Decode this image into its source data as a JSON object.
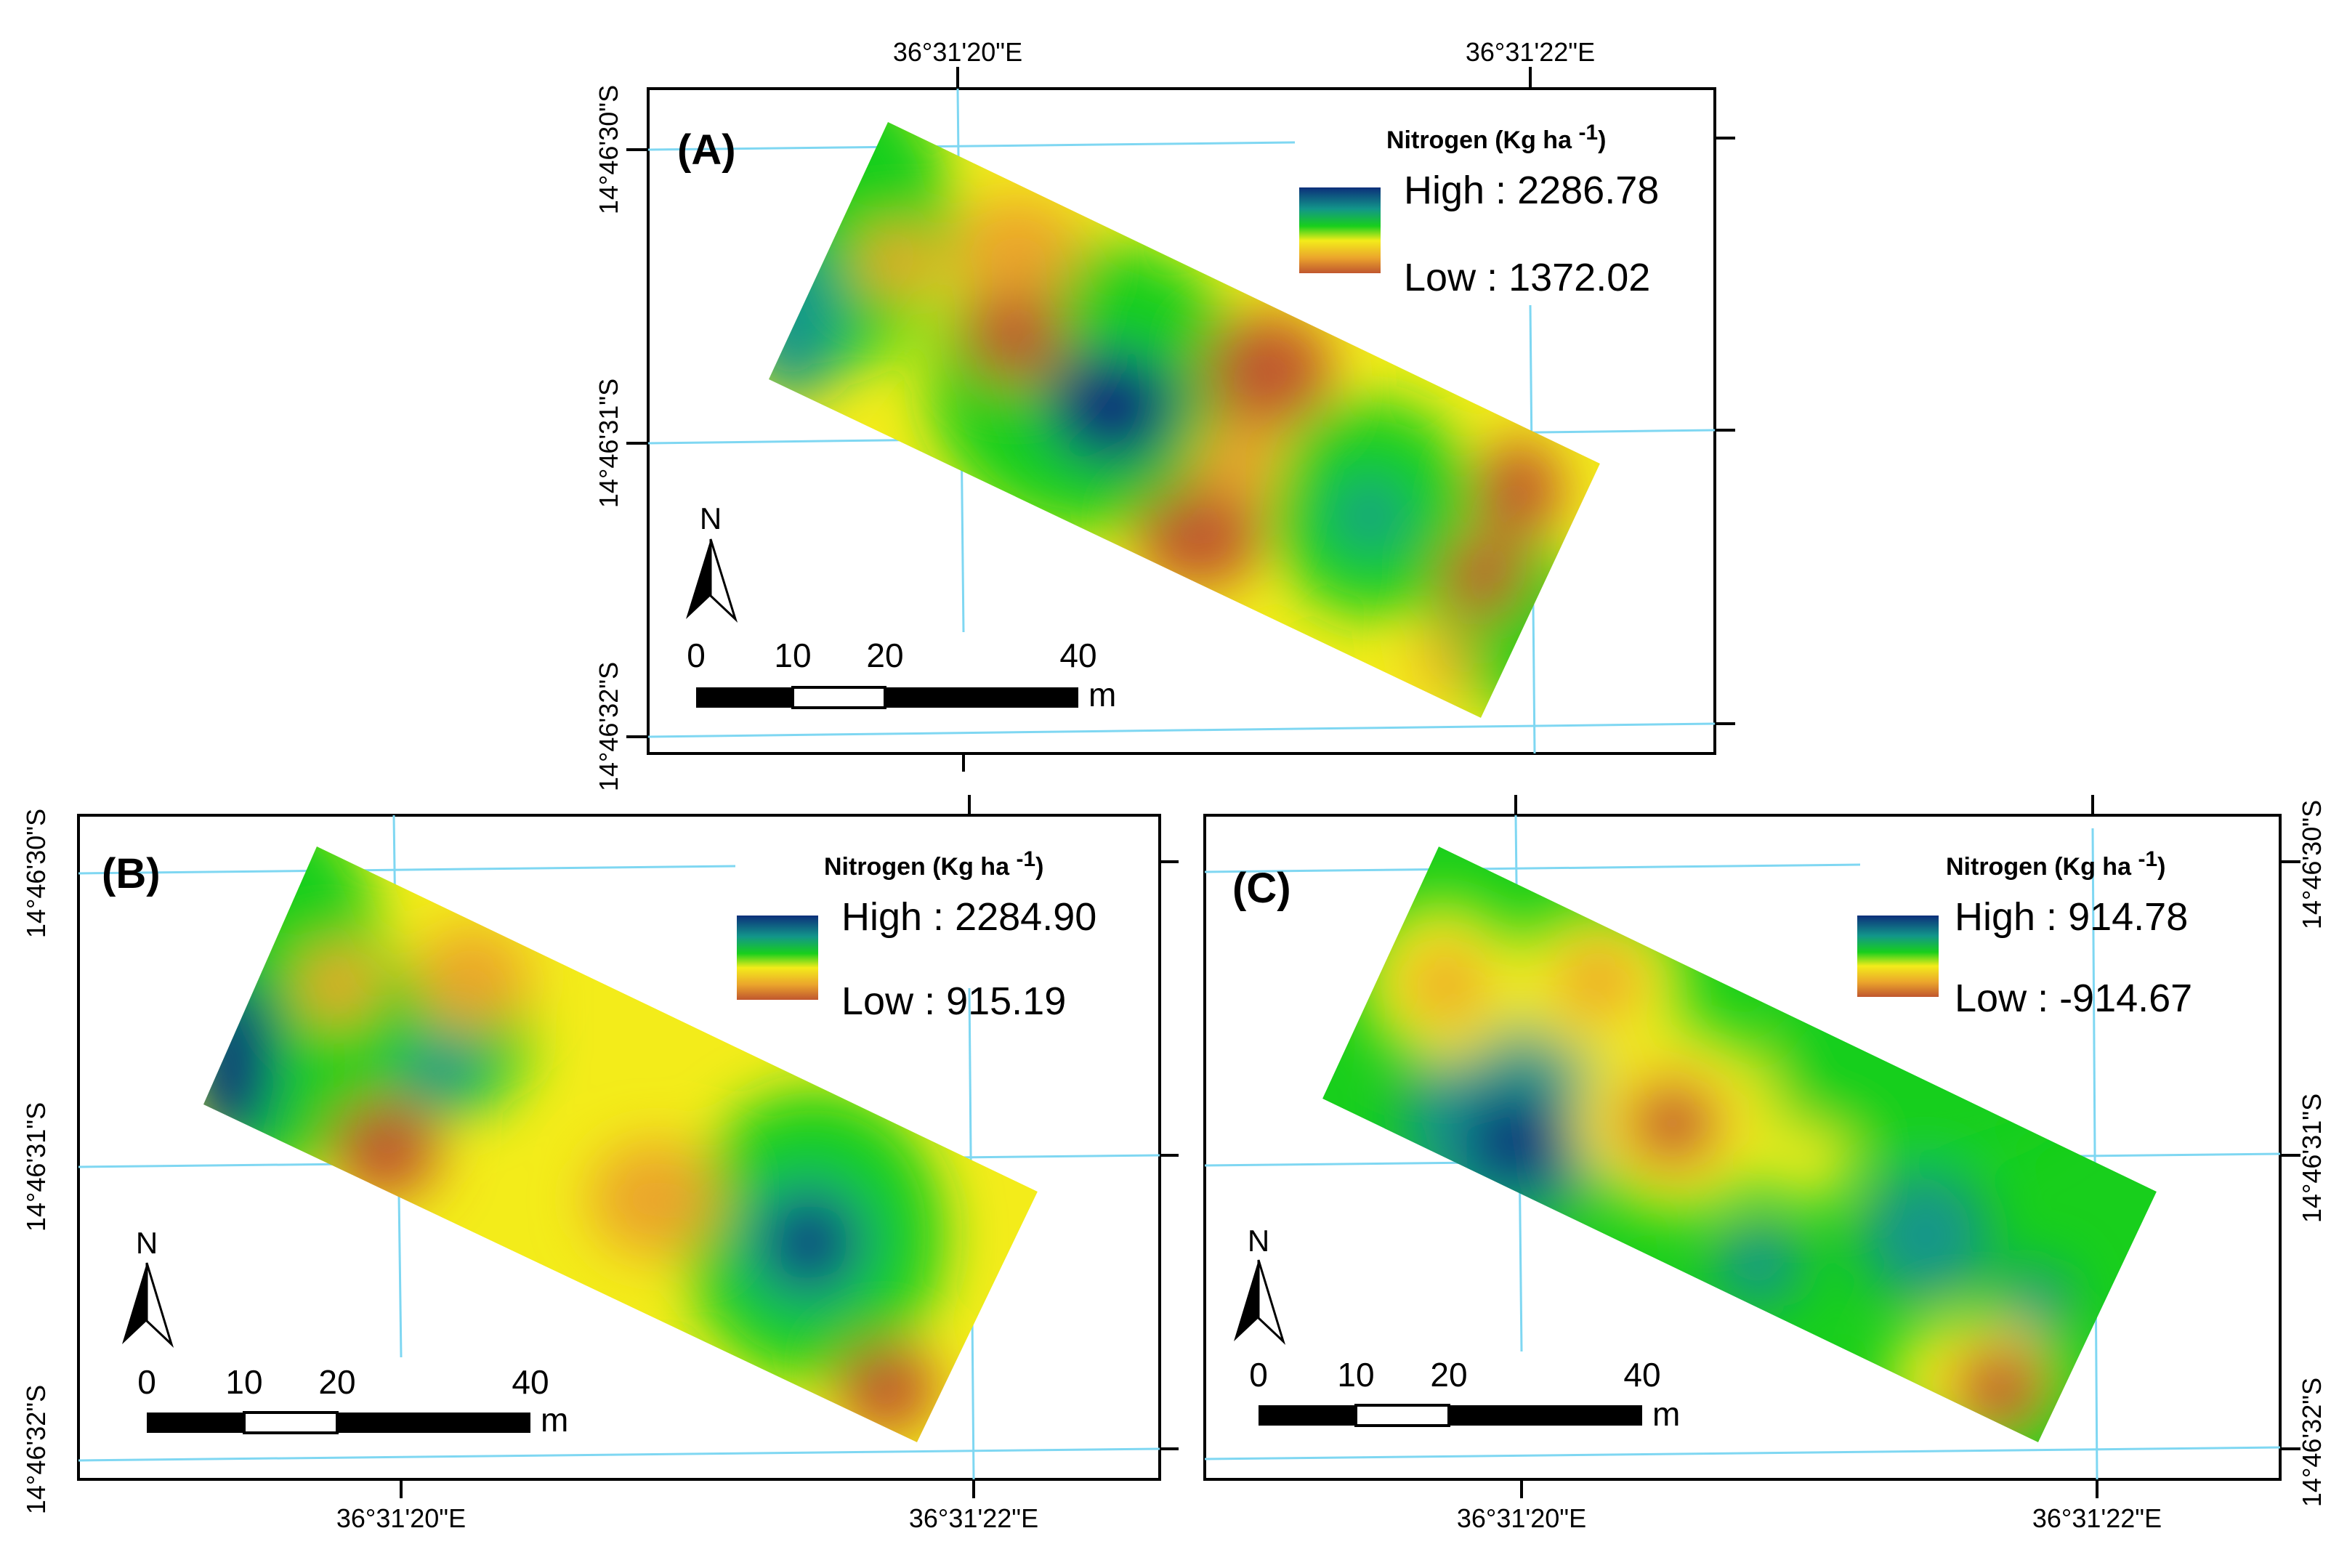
{
  "figure": {
    "panels": [
      {
        "id": "A",
        "label": "(A)",
        "legend_title": "Nitrogen (Kg ha",
        "legend_exp": "-1",
        "legend_close": ")",
        "high_label": "High : 2286.78",
        "low_label": "Low : 1372.02",
        "lon_labels": [
          "36°31'20\"E",
          "36°31'22\"E"
        ],
        "lat_labels": [
          "14°46'30\"S",
          "14°46'31\"S",
          "14°46'32\"S"
        ]
      },
      {
        "id": "B",
        "label": "(B)",
        "legend_title": "Nitrogen (Kg ha",
        "legend_exp": "-1",
        "legend_close": ")",
        "high_label": "High : 2284.90",
        "low_label": "Low : 915.19",
        "lon_labels": [
          "36°31'20\"E",
          "36°31'22\"E"
        ],
        "lat_labels": [
          "14°46'30\"S",
          "14°46'31\"S",
          "14°46'32\"S"
        ]
      },
      {
        "id": "C",
        "label": "(C)",
        "legend_title": "Nitrogen (Kg ha",
        "legend_exp": "-1",
        "legend_close": ")",
        "high_label": "High : 914.78",
        "low_label": "Low : -914.67",
        "lon_labels": [
          "36°31'20\"E",
          "36°31'22\"E"
        ],
        "lat_labels": [
          "14°46'30\"S",
          "14°46'31\"S",
          "14°46'32\"S"
        ]
      }
    ],
    "scale_bar": {
      "ticks": [
        "0",
        "10",
        "20",
        "40"
      ],
      "unit": "m"
    },
    "north_arrow": "N",
    "colors": {
      "high": "#0c2f7a",
      "teal": "#12968a",
      "green": "#18cf1c",
      "yellow": "#f3ec1a",
      "orange": "#eba52c",
      "low": "#c0562e",
      "grid": "#7fd7f2"
    }
  }
}
